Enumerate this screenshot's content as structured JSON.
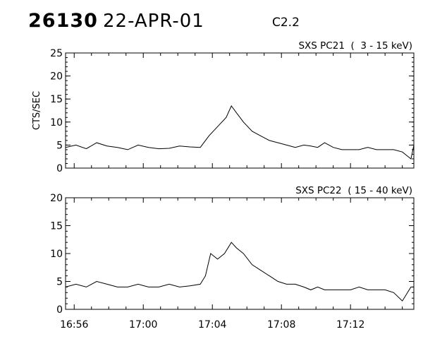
{
  "header": {
    "event_id": "26130",
    "date": "22-APR-01",
    "flare_class": "C2.2"
  },
  "chart_data": [
    {
      "type": "line",
      "title": "SXS PC21  (  3 - 15 keV)",
      "ylabel": "CTS/SEC",
      "xlabel": "",
      "xlim": [
        "16:55:30",
        "17:15:40"
      ],
      "ylim": [
        0,
        25
      ],
      "yticks": [
        0,
        5,
        10,
        15,
        20,
        25
      ],
      "xticks": [
        "16:56",
        "17:00",
        "17:04",
        "17:08",
        "17:12"
      ],
      "series": [
        {
          "x_minutes_offset_note": "minutes after 16:55:30",
          "x": [
            0,
            0.6,
            1.2,
            1.8,
            2.4,
            3.0,
            3.6,
            4.2,
            4.8,
            5.4,
            6.0,
            6.6,
            7.2,
            7.8,
            8.3,
            8.8,
            9.3,
            9.6,
            9.9,
            10.3,
            10.8,
            11.3,
            11.8,
            12.3,
            12.8,
            13.3,
            13.8,
            14.2,
            14.6,
            15.0,
            15.5,
            16.0,
            16.5,
            17.0,
            17.5,
            18.0,
            18.5,
            19.0,
            19.5,
            20.0,
            20.17
          ],
          "values": [
            4.5,
            5,
            4.2,
            5.5,
            4.8,
            4.5,
            4,
            5,
            4.5,
            4.2,
            4.3,
            4.8,
            4.6,
            4.5,
            7,
            9,
            11,
            13.5,
            12,
            10,
            8,
            7,
            6,
            5.5,
            5,
            4.5,
            5,
            4.8,
            4.5,
            5.5,
            4.5,
            4,
            4,
            4,
            4.5,
            4,
            4,
            4,
            3.5,
            2,
            5
          ]
        }
      ]
    },
    {
      "type": "line",
      "title": "SXS PC22  ( 15 - 40 keV)",
      "ylabel": "",
      "xlabel": "",
      "xlim": [
        "16:55:30",
        "17:15:40"
      ],
      "ylim": [
        0,
        20
      ],
      "yticks": [
        0,
        5,
        10,
        15,
        20
      ],
      "xticks": [
        "16:56",
        "17:00",
        "17:04",
        "17:08",
        "17:12"
      ],
      "series": [
        {
          "x": [
            0,
            0.6,
            1.2,
            1.8,
            2.4,
            3.0,
            3.6,
            4.2,
            4.8,
            5.4,
            6.0,
            6.6,
            7.2,
            7.8,
            8.1,
            8.4,
            8.8,
            9.2,
            9.6,
            9.9,
            10.3,
            10.8,
            11.3,
            11.8,
            12.3,
            12.8,
            13.3,
            13.8,
            14.2,
            14.6,
            15.0,
            15.5,
            16.0,
            16.5,
            17.0,
            17.5,
            18.0,
            18.5,
            19.0,
            19.5,
            20.0,
            20.17
          ],
          "values": [
            4,
            4.5,
            4,
            5,
            4.5,
            4,
            4,
            4.5,
            4,
            4,
            4.5,
            4,
            4.2,
            4.5,
            6,
            10,
            9,
            10,
            12,
            11,
            10,
            8,
            7,
            6,
            5,
            4.5,
            4.5,
            4,
            3.5,
            4,
            3.5,
            3.5,
            3.5,
            3.5,
            4,
            3.5,
            3.5,
            3.5,
            3,
            1.5,
            4,
            4
          ]
        }
      ]
    }
  ]
}
